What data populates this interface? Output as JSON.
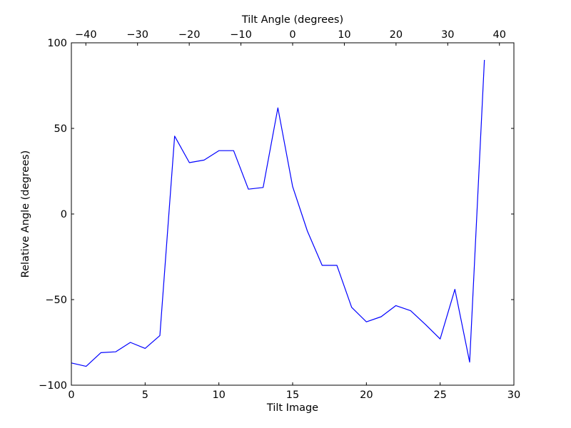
{
  "chart_data": {
    "type": "line",
    "xlabel": "Tilt Image",
    "ylabel": "Relative Angle (degrees)",
    "x2label": "Tilt Angle (degrees)",
    "xlim": [
      0,
      30
    ],
    "ylim": [
      -100,
      100
    ],
    "x2lim": [
      -42.8,
      42.8
    ],
    "grid": false,
    "xticks": [
      0,
      5,
      10,
      15,
      20,
      25,
      30
    ],
    "yticks": [
      -100,
      -50,
      0,
      50,
      100
    ],
    "x2ticks": [
      -40,
      -30,
      -20,
      -10,
      0,
      10,
      20,
      30,
      40
    ],
    "xtick_labels": [
      "0",
      "5",
      "10",
      "15",
      "20",
      "25",
      "30"
    ],
    "ytick_labels": [
      "−100",
      "−50",
      "0",
      "50",
      "100"
    ],
    "x2tick_labels": [
      "−40",
      "−30",
      "−20",
      "−10",
      "0",
      "10",
      "20",
      "30",
      "40"
    ],
    "series": [
      {
        "color": "#0000ff",
        "x": [
          0,
          1,
          2,
          3,
          4,
          5,
          6,
          7,
          8,
          9,
          10,
          11,
          12,
          13,
          14,
          15,
          16,
          17,
          18,
          19,
          20,
          21,
          22,
          23,
          24,
          25,
          26,
          27,
          28
        ],
        "values": [
          -87,
          -89,
          -81,
          -80.5,
          -75,
          -78.5,
          -71,
          45.5,
          30,
          31.5,
          37,
          37,
          14.5,
          15.5,
          62,
          16,
          -10,
          -30,
          -30,
          -54.5,
          -63,
          -60,
          -53.5,
          -56.5,
          -64.5,
          -73,
          -44,
          -86.5,
          90
        ]
      }
    ]
  }
}
